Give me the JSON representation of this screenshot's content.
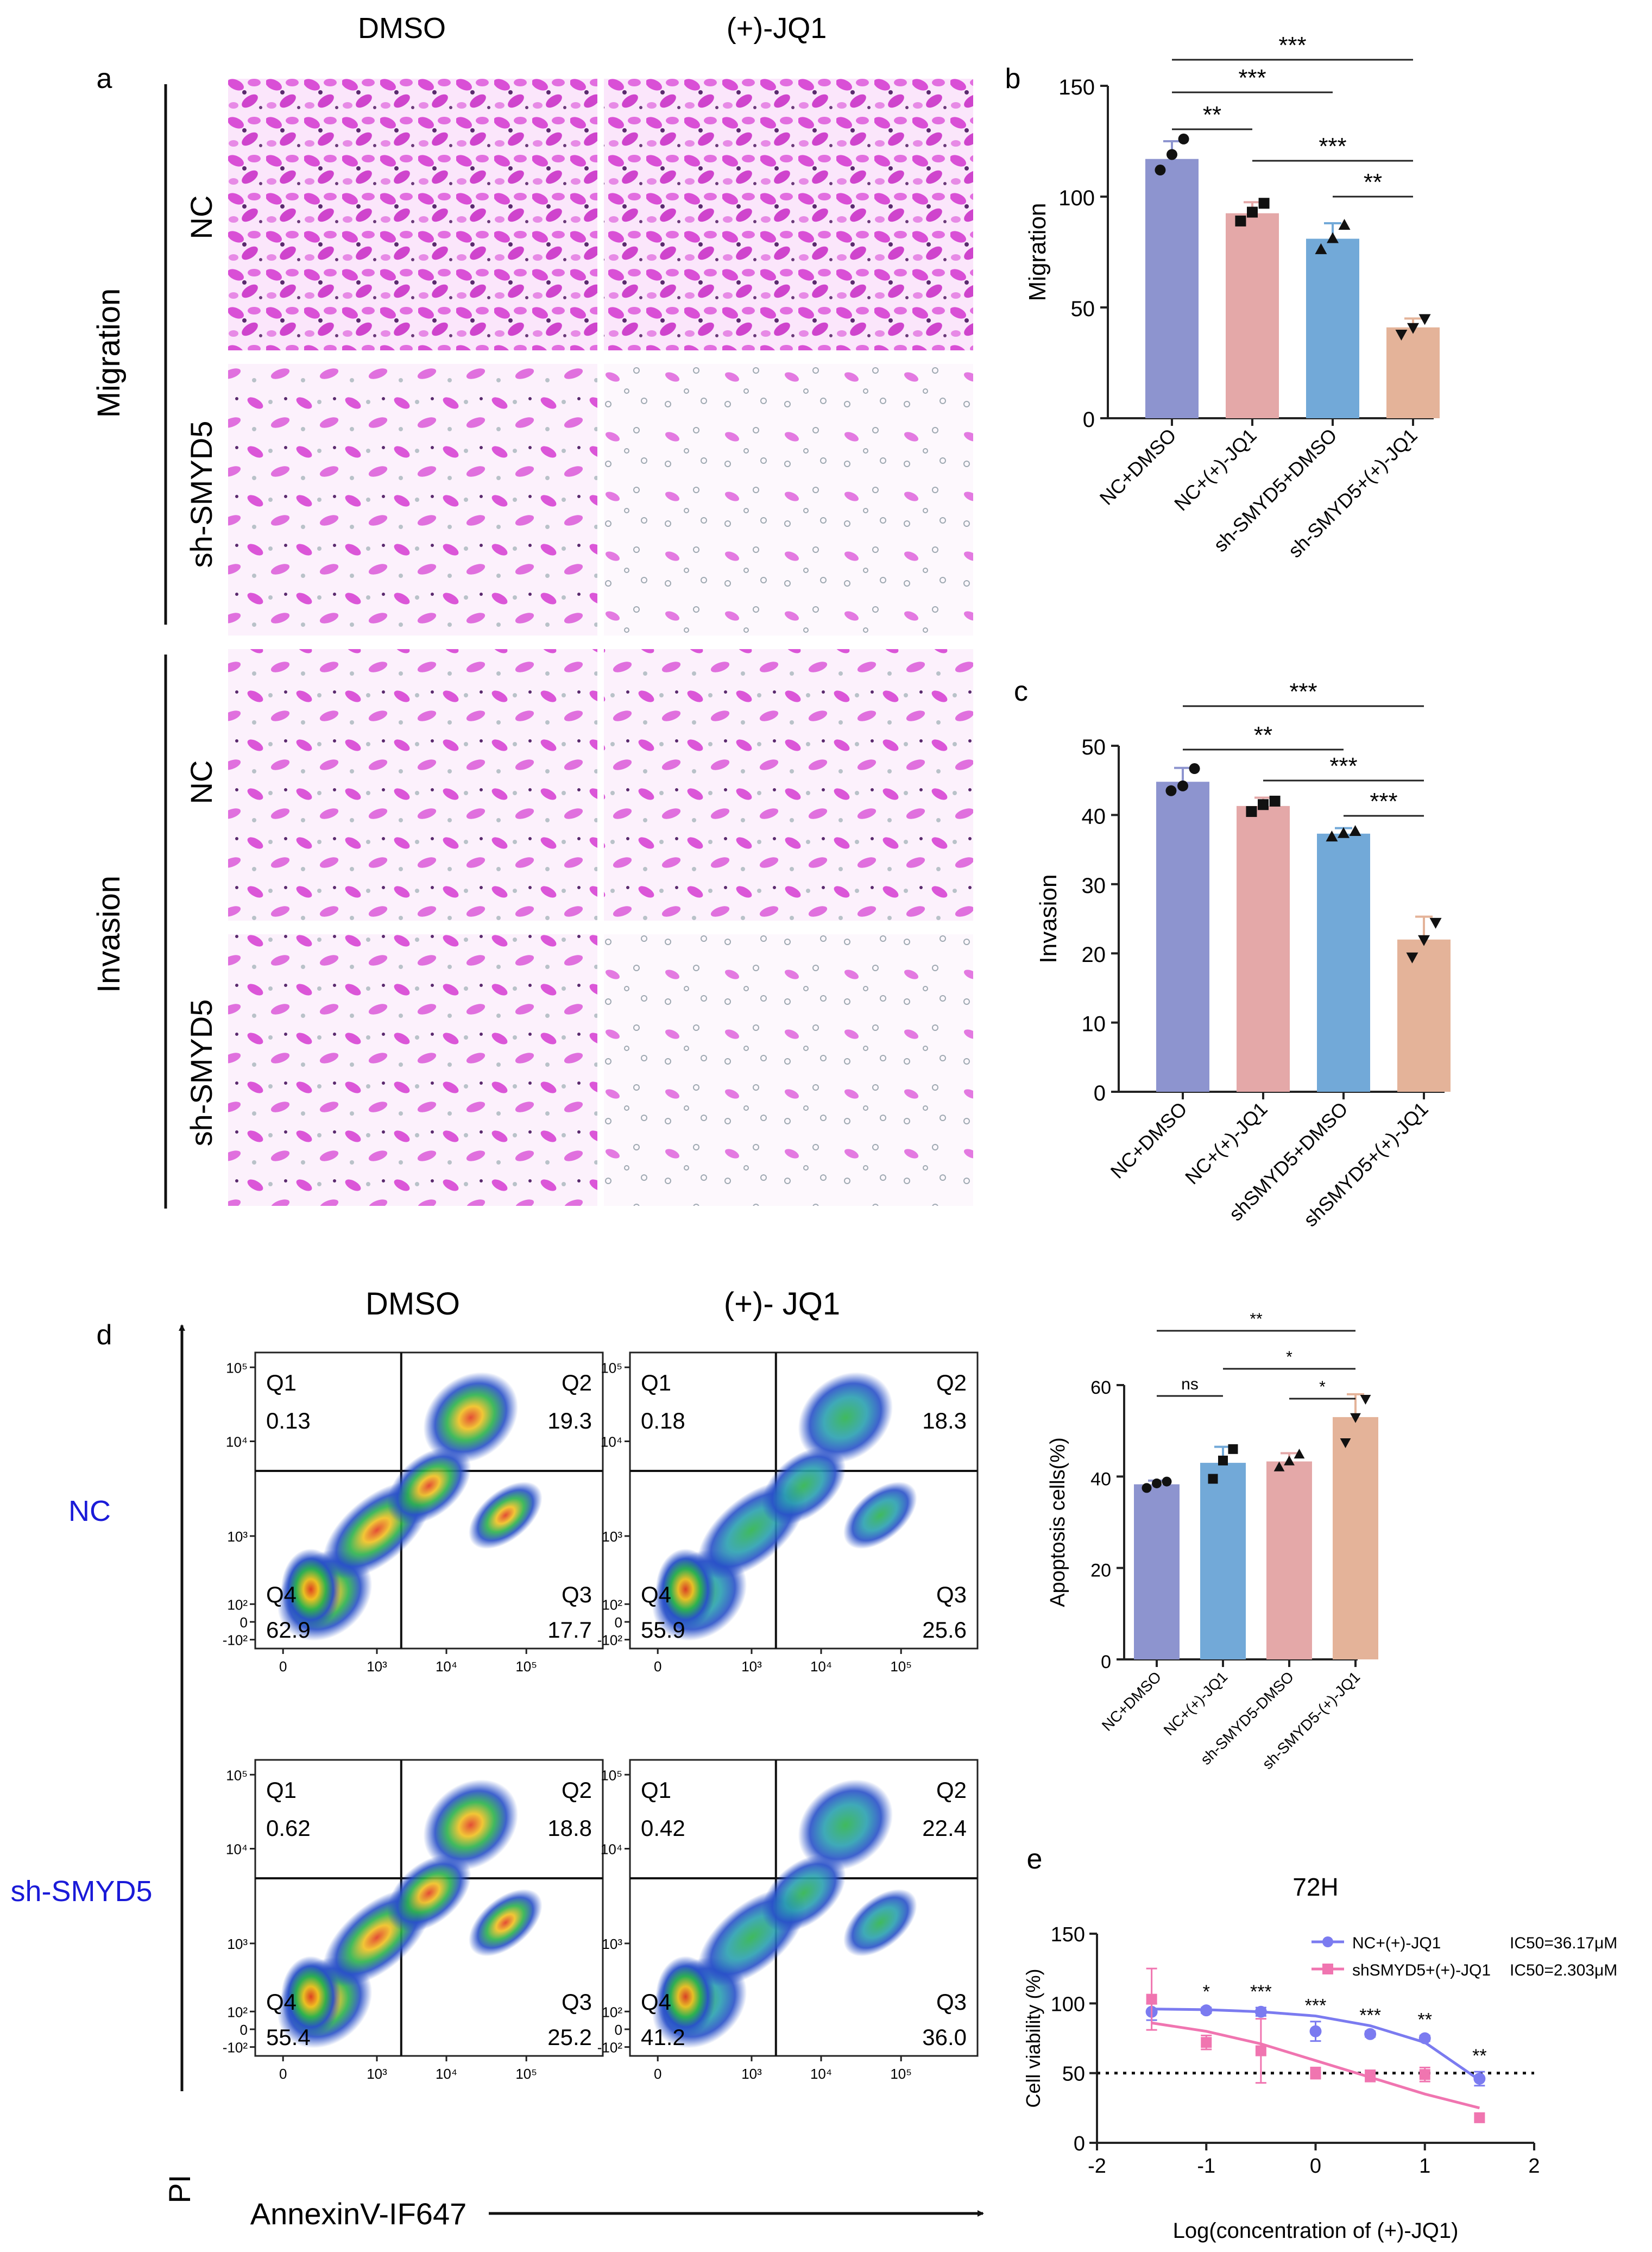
{
  "panel_letters": [
    "a",
    "b",
    "c",
    "d",
    "e"
  ],
  "panel_a": {
    "column_labels": [
      "DMSO",
      "(+)-JQ1"
    ],
    "group_labels": [
      "Migration",
      "Invasion"
    ],
    "row_labels": [
      "NC",
      "sh-SMYD5",
      "NC",
      "sh-SMYD5"
    ]
  },
  "panel_d": {
    "column_labels": [
      "DMSO",
      "(+)- JQ1"
    ],
    "row_labels": [
      "NC",
      "sh-SMYD5"
    ],
    "row_label_color": "#1a1ad8",
    "y_axis_label": "PI",
    "x_axis_label": "AnnexinV-IF647",
    "y_ticks": [
      "10⁵",
      "10⁴",
      "10³",
      "10²",
      "0",
      "-10²"
    ],
    "x_ticks": [
      "0",
      "10³",
      "10⁴",
      "10⁵"
    ],
    "quadrant_names": [
      "Q1",
      "Q2",
      "Q4",
      "Q3"
    ],
    "plots": [
      {
        "row": "NC",
        "col": "DMSO",
        "q1": "0.13",
        "q2": "19.3",
        "q4": "62.9",
        "q3": "17.7"
      },
      {
        "row": "NC",
        "col": "(+)- JQ1",
        "q1": "0.18",
        "q2": "18.3",
        "q4": "55.9",
        "q3": "25.6"
      },
      {
        "row": "sh-SMYD5",
        "col": "DMSO",
        "q1": "0.62",
        "q2": "18.8",
        "q4": "55.4",
        "q3": "25.2"
      },
      {
        "row": "sh-SMYD5",
        "col": "(+)- JQ1",
        "q1": "0.42",
        "q2": "22.4",
        "q4": "41.2",
        "q3": "36.0"
      }
    ]
  },
  "colors": {
    "bar_purple": "#8d94cf",
    "bar_pink": "#e4a8a8",
    "bar_blue": "#72a9d8",
    "bar_tan": "#e4b399",
    "stain": "#d94fd6",
    "nc_line": "#7b7bf0",
    "sh_line": "#f075b0"
  },
  "chart_data": [
    {
      "id": "b",
      "type": "bar",
      "title": "",
      "xlabel": "",
      "ylabel": "Migration",
      "categories": [
        "NC+DMSO",
        "NC+(+)-JQ1",
        "sh-SMYD5+DMSO",
        "sh-SMYD5+(+)-JQ1"
      ],
      "values": [
        117,
        92.5,
        81,
        41
      ],
      "errors": [
        8,
        5,
        7,
        4
      ],
      "points": [
        [
          112,
          119,
          126
        ],
        [
          89,
          93,
          97
        ],
        [
          76,
          81,
          87
        ],
        [
          38,
          41,
          45
        ]
      ],
      "ylim": [
        0,
        150
      ],
      "yticks": [
        "0",
        "50",
        "100",
        "150"
      ],
      "significance": [
        {
          "from": 0,
          "to": 1,
          "label": "**"
        },
        {
          "from": 0,
          "to": 2,
          "label": "***"
        },
        {
          "from": 0,
          "to": 3,
          "label": "***"
        },
        {
          "from": 1,
          "to": 3,
          "label": "***"
        },
        {
          "from": 2,
          "to": 3,
          "label": "**"
        }
      ]
    },
    {
      "id": "c",
      "type": "bar",
      "title": "",
      "xlabel": "",
      "ylabel": "Invasion",
      "categories": [
        "NC+DMSO",
        "NC+(+)-JQ1",
        "shSMYD5+DMSO",
        "shSMYD5+(+)-JQ1"
      ],
      "values": [
        44.8,
        41.3,
        37.3,
        22
      ],
      "errors": [
        2,
        1.2,
        0.8,
        3.3
      ],
      "points": [
        [
          43.5,
          44.2,
          46.7
        ],
        [
          40.5,
          41.5,
          42
        ],
        [
          36.8,
          37.3,
          37.6
        ],
        [
          19.5,
          22,
          24.5
        ]
      ],
      "ylim": [
        0,
        50
      ],
      "yticks": [
        "0",
        "10",
        "20",
        "30",
        "40",
        "50"
      ],
      "significance": [
        {
          "from": 0,
          "to": 2,
          "label": "**"
        },
        {
          "from": 0,
          "to": 3,
          "label": "***"
        },
        {
          "from": 1,
          "to": 3,
          "label": "***"
        },
        {
          "from": 2,
          "to": 3,
          "label": "***"
        }
      ]
    },
    {
      "id": "d-bar",
      "type": "bar",
      "title": "",
      "xlabel": "",
      "ylabel": "Apoptosis cells(%)",
      "categories": [
        "NC+DMSO",
        "NC+(+)-JQ1",
        "sh-SMYD5-DMSO",
        "sh-SMYD5-(+)-JQ1"
      ],
      "values": [
        38.3,
        43,
        43.3,
        53
      ],
      "errors": [
        0.8,
        3.5,
        1.8,
        5
      ],
      "points": [
        [
          37.5,
          38.5,
          38.9
        ],
        [
          39.5,
          43.5,
          46
        ],
        [
          42,
          43.3,
          44.8
        ],
        [
          47.5,
          53,
          57
        ]
      ],
      "ylim": [
        0,
        60
      ],
      "yticks": [
        "0",
        "20",
        "40",
        "60"
      ],
      "significance": [
        {
          "from": 0,
          "to": 3,
          "label": "**"
        },
        {
          "from": 0,
          "to": 1,
          "label": "ns"
        },
        {
          "from": 1,
          "to": 3,
          "label": "*"
        },
        {
          "from": 2,
          "to": 3,
          "label": "*"
        }
      ]
    },
    {
      "id": "e",
      "type": "line",
      "title": "72H",
      "xlabel": "Log(concentration of (+)-JQ1)",
      "ylabel": "Cell viability (%)",
      "xlim": [
        -2,
        2
      ],
      "ylim": [
        0,
        150
      ],
      "xticks": [
        "-2",
        "-1",
        "0",
        "1",
        "2"
      ],
      "yticks": [
        "0",
        "50",
        "100",
        "150"
      ],
      "reference_line_y": 50,
      "x": [
        -1.5,
        -1,
        -0.5,
        0,
        0.5,
        1,
        1.5
      ],
      "series": [
        {
          "name": "NC+(+)-JQ1",
          "ic50": "IC50=36.17μM",
          "values": [
            94,
            95,
            94,
            80,
            78,
            75,
            46
          ],
          "errors": [
            6,
            2,
            3,
            7,
            2,
            2,
            5
          ],
          "fit": [
            [
              -1.5,
              96
            ],
            [
              -1,
              95.5
            ],
            [
              -0.5,
              94
            ],
            [
              0,
              91
            ],
            [
              0.5,
              84
            ],
            [
              1,
              72
            ],
            [
              1.5,
              45
            ]
          ]
        },
        {
          "name": "shSMYD5+(+)-JQ1",
          "ic50": "IC50=2.303μM",
          "values": [
            103,
            72,
            66,
            50,
            48,
            49,
            18
          ],
          "errors": [
            22,
            5,
            23,
            4,
            4,
            5,
            0
          ],
          "fit": [
            [
              -1.5,
              86
            ],
            [
              -1,
              80
            ],
            [
              -0.5,
              71
            ],
            [
              0,
              59
            ],
            [
              0.5,
              47
            ],
            [
              1,
              35
            ],
            [
              1.5,
              25
            ]
          ]
        }
      ],
      "significance_labels": [
        "*",
        "***",
        "***",
        "***",
        "**",
        "**"
      ]
    }
  ]
}
